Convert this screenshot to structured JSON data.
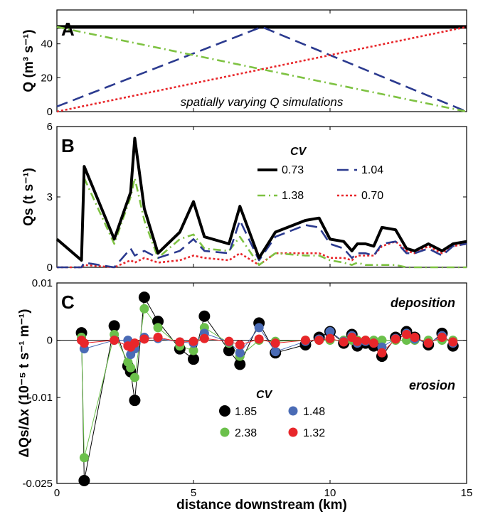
{
  "x_axis": {
    "label": "distance downstream (km)",
    "ticks": [
      "0",
      "5",
      "10",
      "15"
    ],
    "range": [
      0,
      15
    ]
  },
  "colors": {
    "black": "#000000",
    "blue": "#2b3a8f",
    "green": "#7ec242",
    "red": "#e8262a",
    "blue_dot": "#4a6bb5",
    "green_dot": "#6bc04b",
    "red_dot": "#e8262a"
  },
  "chart_data": [
    {
      "type": "line",
      "panel_label": "A",
      "ylabel": "Q (m³ s⁻¹)",
      "ylim": [
        0,
        60
      ],
      "yticks": [
        "0",
        "20",
        "40"
      ],
      "annotation": "spatially varying Q simulations",
      "series": [
        {
          "style": "solid",
          "color": "#000000",
          "x": [
            0,
            15
          ],
          "y": [
            50,
            50
          ]
        },
        {
          "style": "dashed",
          "color": "#2b3a8f",
          "x": [
            0,
            7.5,
            15
          ],
          "y": [
            3,
            50,
            0
          ]
        },
        {
          "style": "dashdot",
          "color": "#7ec242",
          "x": [
            0,
            15
          ],
          "y": [
            50,
            0
          ]
        },
        {
          "style": "dotted",
          "color": "#e8262a",
          "x": [
            0,
            15
          ],
          "y": [
            0,
            50
          ]
        }
      ]
    },
    {
      "type": "line",
      "panel_label": "B",
      "ylabel": "Qs (t s⁻¹)",
      "ylim": [
        0,
        6
      ],
      "yticks": [
        "0",
        "3",
        "6"
      ],
      "legend_title": "CV",
      "x": [
        0,
        0.9,
        1.0,
        2.1,
        2.7,
        2.85,
        3.2,
        3.7,
        4.5,
        5.0,
        5.4,
        6.3,
        6.7,
        7.4,
        8.0,
        9.1,
        9.6,
        10.0,
        10.5,
        10.8,
        11.0,
        11.3,
        11.6,
        11.9,
        12.4,
        12.8,
        13.1,
        13.6,
        14.1,
        14.5,
        15.0
      ],
      "series": [
        {
          "name": "0.73",
          "style": "solid",
          "color": "#000000",
          "values": [
            1.2,
            0.3,
            4.3,
            1.2,
            3.2,
            5.5,
            2.5,
            0.6,
            1.5,
            2.8,
            1.3,
            1.0,
            2.6,
            0.4,
            1.5,
            2.0,
            2.1,
            1.2,
            1.1,
            0.7,
            1.0,
            1.0,
            0.9,
            1.7,
            1.6,
            0.8,
            0.7,
            1.0,
            0.7,
            1.0,
            1.1
          ]
        },
        {
          "name": "1.04",
          "style": "dashed",
          "color": "#2b3a8f",
          "values": [
            0.0,
            0.0,
            0.2,
            0.0,
            0.8,
            0.5,
            0.7,
            0.4,
            0.7,
            1.2,
            0.7,
            0.6,
            2.0,
            0.3,
            1.3,
            1.8,
            1.7,
            1.0,
            0.8,
            0.4,
            0.6,
            0.6,
            0.5,
            1.0,
            1.1,
            0.6,
            0.6,
            0.8,
            0.5,
            0.9,
            1.0
          ]
        },
        {
          "name": "1.38",
          "style": "dashdot",
          "color": "#7ec242",
          "values": [
            1.2,
            0.3,
            3.8,
            1.0,
            3.0,
            3.8,
            2.0,
            0.4,
            1.2,
            1.4,
            0.8,
            0.7,
            1.3,
            0.1,
            0.6,
            0.5,
            0.5,
            0.3,
            0.2,
            0.1,
            0.2,
            0.1,
            0.1,
            0.1,
            0.1,
            0.0,
            0.0,
            0.0,
            0.0,
            0.0,
            0.0
          ]
        },
        {
          "name": "0.70",
          "style": "dotted",
          "color": "#e8262a",
          "values": [
            0.0,
            0.0,
            0.1,
            0.0,
            0.3,
            0.2,
            0.4,
            0.2,
            0.3,
            0.5,
            0.4,
            0.3,
            0.6,
            0.1,
            0.6,
            0.6,
            0.6,
            0.4,
            0.4,
            0.3,
            0.5,
            0.5,
            0.5,
            0.9,
            1.1,
            0.7,
            0.6,
            0.9,
            0.6,
            0.9,
            1.0
          ]
        }
      ]
    },
    {
      "type": "scatter",
      "panel_label": "C",
      "ylabel": "ΔQs/Δx (10⁻⁵ t s⁻¹ m⁻¹)",
      "ylim": [
        -0.025,
        0.01
      ],
      "yticks": [
        "0.01",
        "0",
        "-0.01",
        "-0.025"
      ],
      "annotations": [
        "deposition",
        "erosion"
      ],
      "legend_title": "CV",
      "x": [
        0.9,
        1.0,
        2.1,
        2.6,
        2.7,
        2.85,
        3.2,
        3.7,
        4.5,
        5.0,
        5.4,
        6.3,
        6.7,
        7.4,
        8.0,
        9.1,
        9.6,
        10.0,
        10.5,
        10.8,
        11.0,
        11.3,
        11.6,
        11.9,
        12.4,
        12.8,
        13.1,
        13.6,
        14.1,
        14.5
      ],
      "series": [
        {
          "name": "1.85",
          "color": "#000000",
          "values": [
            0.0013,
            -0.0245,
            0.0025,
            -0.0045,
            -0.0055,
            -0.0105,
            0.0075,
            0.0033,
            -0.0015,
            -0.0033,
            0.0042,
            -0.0018,
            -0.0042,
            0.003,
            -0.0022,
            -0.0008,
            0.0005,
            0.0015,
            -0.0005,
            0.001,
            -0.001,
            -0.0005,
            -0.001,
            -0.0028,
            0.0005,
            0.0015,
            0.0005,
            -0.0008,
            0.0012,
            -0.001
          ]
        },
        {
          "name": "1.48",
          "color": "#4a6bb5",
          "values": [
            0.0,
            -0.0015,
            0.0,
            0.0,
            -0.0025,
            -0.0015,
            0.0005,
            0.0003,
            -0.0003,
            -0.0005,
            0.0012,
            -0.0003,
            -0.0022,
            0.0022,
            -0.002,
            -0.0002,
            0.0002,
            0.0015,
            -0.0002,
            0.0008,
            -0.0005,
            -0.0002,
            -0.0005,
            -0.0012,
            0.0003,
            0.0012,
            0.0002,
            -0.0005,
            0.0008,
            -0.0005
          ]
        },
        {
          "name": "2.38",
          "color": "#6bc04b",
          "values": [
            0.0005,
            -0.0205,
            0.001,
            -0.0038,
            -0.0048,
            -0.0065,
            0.0055,
            0.0022,
            -0.001,
            -0.0018,
            0.0022,
            -0.0005,
            -0.0028,
            0.0,
            -0.0002,
            0.0,
            0.0,
            0.0,
            0.0,
            0.0,
            0.0,
            0.0,
            0.0,
            0.0,
            0.0,
            0.0,
            0.0,
            0.0,
            0.0,
            0.0
          ]
        },
        {
          "name": "1.32",
          "color": "#e8262a",
          "values": [
            0.0,
            -0.0005,
            0.0,
            -0.001,
            -0.0012,
            -0.0005,
            0.0002,
            0.0005,
            -0.0003,
            -0.0002,
            0.0003,
            -0.0002,
            -0.0008,
            0.0002,
            -0.0005,
            0.0,
            0.0,
            0.0003,
            -0.0003,
            0.0005,
            -0.0002,
            0.0,
            -0.0005,
            -0.0022,
            0.0002,
            0.001,
            0.0005,
            -0.0005,
            0.0005,
            -0.0003
          ]
        }
      ]
    }
  ]
}
